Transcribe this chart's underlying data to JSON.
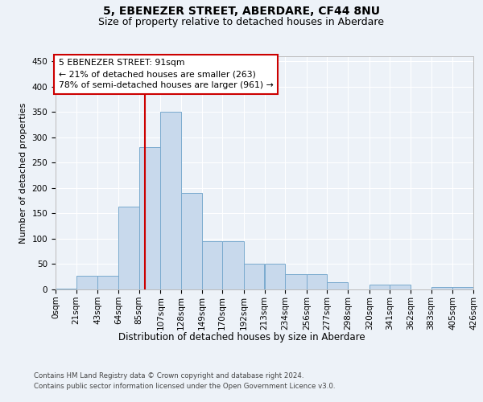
{
  "title1": "5, EBENEZER STREET, ABERDARE, CF44 8NU",
  "title2": "Size of property relative to detached houses in Aberdare",
  "xlabel": "Distribution of detached houses by size in Aberdare",
  "ylabel": "Number of detached properties",
  "footer1": "Contains HM Land Registry data © Crown copyright and database right 2024.",
  "footer2": "Contains public sector information licensed under the Open Government Licence v3.0.",
  "annotation_line1": "5 EBENEZER STREET: 91sqm",
  "annotation_line2": "← 21% of detached houses are smaller (263)",
  "annotation_line3": "78% of semi-detached houses are larger (961) →",
  "property_size": 91,
  "bar_color": "#c8d9ec",
  "bar_edge_color": "#7aaace",
  "line_color": "#cc0000",
  "bin_edges": [
    0,
    21,
    43,
    64,
    85,
    107,
    128,
    149,
    170,
    192,
    213,
    234,
    256,
    277,
    298,
    320,
    341,
    362,
    383,
    405,
    426
  ],
  "bin_labels": [
    "0sqm",
    "21sqm",
    "43sqm",
    "64sqm",
    "85sqm",
    "107sqm",
    "128sqm",
    "149sqm",
    "170sqm",
    "192sqm",
    "213sqm",
    "234sqm",
    "256sqm",
    "277sqm",
    "298sqm",
    "320sqm",
    "341sqm",
    "362sqm",
    "383sqm",
    "405sqm",
    "426sqm"
  ],
  "counts": [
    2,
    27,
    27,
    163,
    280,
    350,
    190,
    95,
    95,
    50,
    50,
    30,
    30,
    15,
    0,
    10,
    10,
    0,
    5,
    5
  ],
  "ylim": [
    0,
    460
  ],
  "yticks": [
    0,
    50,
    100,
    150,
    200,
    250,
    300,
    350,
    400,
    450
  ],
  "bg_color": "#edf2f8",
  "title_fontsize": 10,
  "subtitle_fontsize": 9,
  "axis_label_fontsize": 8,
  "tick_fontsize": 7.5
}
